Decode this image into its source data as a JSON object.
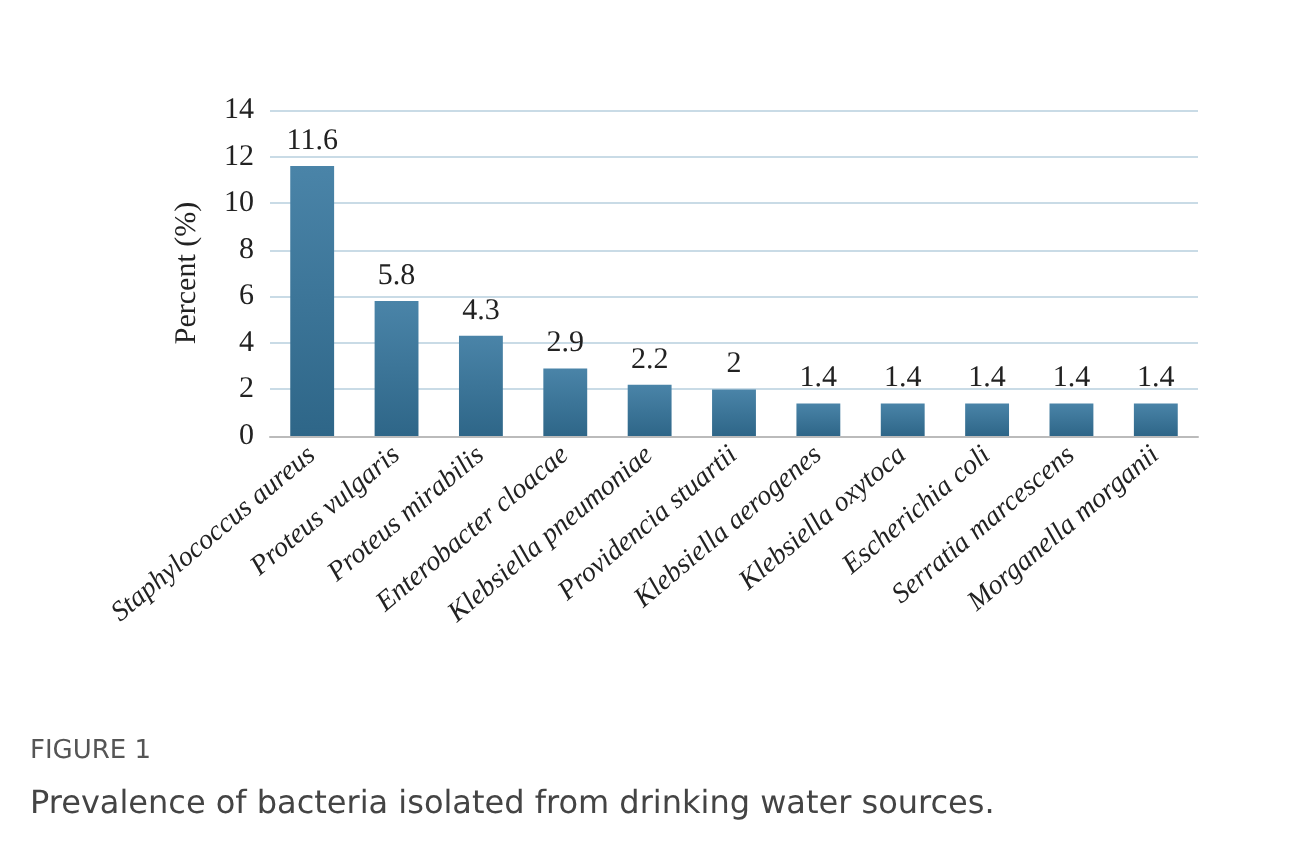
{
  "chart_data": {
    "type": "bar",
    "title": "FIGURE 1",
    "subtitle": "Prevalence of bacteria isolated from drinking water sources.",
    "ylabel": "Percent (%)",
    "categories": [
      "Staphylococcus aureus",
      "Proteus vulgaris",
      "Proteus mirabilis",
      "Enterobacter cloacae",
      "Klebsiella pneumoniae",
      "Providencia stuartii",
      "Klebsiella aerogenes",
      "Klebsiella oxytoca",
      "Escherichia coli",
      "Serratia marcescens",
      "Morganella morganii"
    ],
    "values": [
      11.6,
      5.8,
      4.3,
      2.9,
      2.2,
      2,
      1.4,
      1.4,
      1.4,
      1.4,
      1.4
    ],
    "color": "#2e6688",
    "ylim": [
      0,
      14
    ],
    "yticks": [
      0,
      2,
      4,
      6,
      8,
      10,
      12,
      14
    ],
    "grid": "y",
    "data_labels": true
  }
}
